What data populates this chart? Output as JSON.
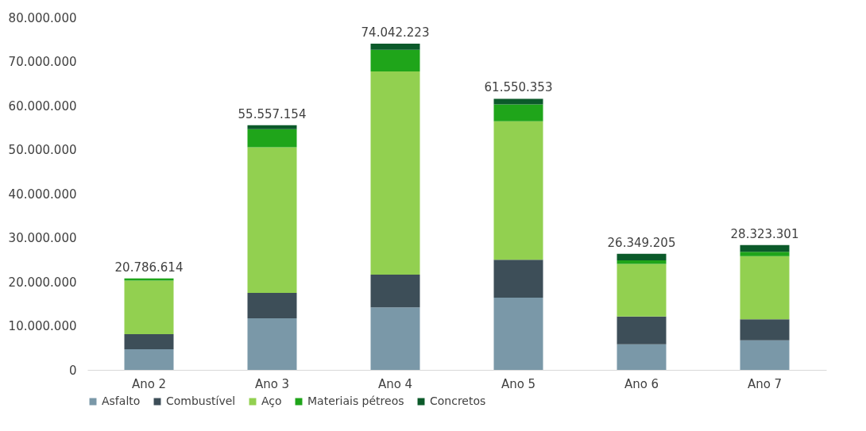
{
  "chart_data": {
    "type": "bar",
    "stacked": true,
    "categories": [
      "Ano 2",
      "Ano 3",
      "Ano 4",
      "Ano 5",
      "Ano 6",
      "Ano 7"
    ],
    "series": [
      {
        "name": "Asfalto",
        "color": "#7a98a8",
        "values": [
          4700000,
          11700000,
          14200000,
          16400000,
          5800000,
          6700000
        ]
      },
      {
        "name": "Combustível",
        "color": "#3d4e58",
        "values": [
          3400000,
          5800000,
          7400000,
          8600000,
          6300000,
          4800000
        ]
      },
      {
        "name": "Aço",
        "color": "#92d050",
        "values": [
          12186614,
          33057154,
          46142223,
          31450353,
          11949205,
          14323301
        ]
      },
      {
        "name": "Materiais pétreos",
        "color": "#1fa51a",
        "values": [
          500000,
          4100000,
          4900000,
          3800000,
          800000,
          1000000
        ]
      },
      {
        "name": "Concretos",
        "color": "#0b5a2a",
        "values": [
          null,
          900000,
          1400000,
          1300000,
          1500000,
          1500000
        ]
      }
    ],
    "totals": [
      "20.786.614",
      "55.557.154",
      "74.042.223",
      "61.550.353",
      "26.349.205",
      "28.323.301"
    ],
    "ylim": [
      0,
      80000000
    ],
    "yticks": [
      {
        "value": 0,
        "label": "0"
      },
      {
        "value": 10000000,
        "label": "10.000.000"
      },
      {
        "value": 20000000,
        "label": "20.000.000"
      },
      {
        "value": 30000000,
        "label": "30.000.000"
      },
      {
        "value": 40000000,
        "label": "40.000.000"
      },
      {
        "value": 50000000,
        "label": "50.000.000"
      },
      {
        "value": 60000000,
        "label": "60.000.000"
      },
      {
        "value": 70000000,
        "label": "70.000.000"
      },
      {
        "value": 80000000,
        "label": "80.000.000"
      }
    ],
    "grid": false,
    "legend": "bottom"
  }
}
